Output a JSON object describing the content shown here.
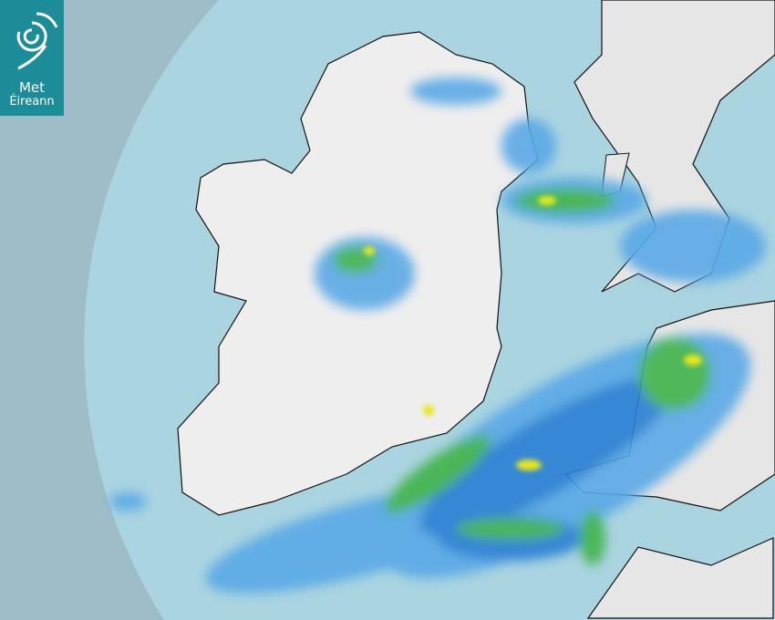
{
  "logo": {
    "line1": "Met",
    "line2": "Éireann"
  },
  "map": {
    "type": "rainfall-radar",
    "colors": {
      "outside_range": "#9ebdc8",
      "sea": "#a9d4e0",
      "land": "#eeeeee",
      "rain_light": "#5aa9e6",
      "rain_moderate": "#2a7fd4",
      "rain_heavy": "#3fb34a",
      "rain_very_heavy": "#e8e81a",
      "logo_background": "#1c8c98"
    }
  }
}
